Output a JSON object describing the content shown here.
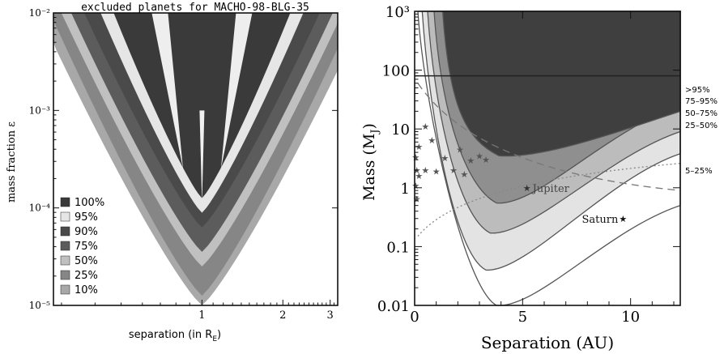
{
  "chart_data": [
    {
      "type": "area",
      "title": "excluded planets for MACHO-98-BLG-35",
      "xlabel": "separation (in R",
      "xlabel_sub": "E",
      "xlabel_close": ")",
      "ylabel": "mass fraction ε",
      "x_scale": "log",
      "y_scale": "log",
      "xlim": [
        0.28,
        3.2
      ],
      "ylim": [
        1e-05,
        0.01
      ],
      "x_ticks": [
        "1",
        "2",
        "3"
      ],
      "y_ticks": [
        "10⁻⁵",
        "10⁻⁴",
        "10⁻³",
        "10⁻²"
      ],
      "legend_position": "bottom-left",
      "legend": [
        {
          "label": "100%",
          "color": "#3a3a3a"
        },
        {
          "label": "95%",
          "color": "#e6e6e6"
        },
        {
          "label": "90%",
          "color": "#4a4a4a"
        },
        {
          "label": "75%",
          "color": "#5c5c5c"
        },
        {
          "label": "50%",
          "color": "#c0c0c0"
        },
        {
          "label": "25%",
          "color": "#868686"
        },
        {
          "label": "10%",
          "color": "#a8a8a8"
        }
      ],
      "detection_contours": [
        {
          "level": "10%",
          "min_log_eps": -5.0,
          "half_width_at_top": 1.0
        },
        {
          "level": "25%",
          "min_log_eps": -4.9,
          "half_width_at_top": 0.93
        },
        {
          "level": "50%",
          "min_log_eps": -4.6,
          "half_width_at_top": 0.86
        },
        {
          "level": "75%",
          "min_log_eps": -4.45,
          "half_width_at_top": 0.8
        },
        {
          "level": "90%",
          "min_log_eps": -4.2,
          "half_width_at_top": 0.72
        },
        {
          "level": "95%",
          "min_log_eps": -4.05,
          "half_width_at_top": 0.62
        },
        {
          "level": "100%",
          "min_log_eps": -3.9,
          "half_width_at_top": 0.54
        }
      ]
    },
    {
      "type": "line",
      "xlabel": "Separation (AU)",
      "ylabel": "Mass (M",
      "ylabel_sub": "J",
      "ylabel_close": ")",
      "x_scale": "linear",
      "y_scale": "log",
      "xlim": [
        0,
        12.3
      ],
      "ylim": [
        0.01,
        1000
      ],
      "x_ticks": [
        "0",
        "5",
        "10"
      ],
      "y_ticks": [
        "0.01",
        "0.1",
        "1",
        "10",
        "100",
        "10³"
      ],
      "grid": false,
      "contour_labels": [
        ">95%",
        "75–95%",
        "50–75%",
        "25–50%",
        "5–25%"
      ],
      "contours": [
        {
          "name": ">95%",
          "x_min": 3.9,
          "y_min": 3.5,
          "x_left_at_top": 1.3,
          "y_right_at_edge": 20
        },
        {
          "name": "75–95%",
          "x_min": 3.8,
          "y_min": 0.55,
          "x_left_at_top": 0.9,
          "y_right_at_edge": 25
        },
        {
          "name": "50–75%",
          "x_min": 3.5,
          "y_min": 0.17,
          "x_left_at_top": 0.6,
          "y_right_at_edge": 9
        },
        {
          "name": "25–50%",
          "x_min": 3.3,
          "y_min": 0.04,
          "x_left_at_top": 0.35,
          "y_right_at_edge": 3.8
        },
        {
          "name": "5–25%",
          "x_min": 3.8,
          "y_min": 0.01,
          "x_left_at_top": 0.15,
          "y_right_at_edge": 0.5
        }
      ],
      "reference_line": {
        "y": 80
      },
      "planets": [
        {
          "name": "Jupiter",
          "x": 5.2,
          "y": 1.0
        },
        {
          "name": "Saturn",
          "x": 9.5,
          "y": 0.3
        }
      ],
      "known_planet_stars": [
        {
          "x": 0.05,
          "y": 3.3
        },
        {
          "x": 0.1,
          "y": 2.0
        },
        {
          "x": 0.05,
          "y": 1.1
        },
        {
          "x": 0.1,
          "y": 0.65
        },
        {
          "x": 0.2,
          "y": 5.0
        },
        {
          "x": 0.5,
          "y": 11
        },
        {
          "x": 0.5,
          "y": 2.0
        },
        {
          "x": 0.8,
          "y": 6.5
        },
        {
          "x": 1.0,
          "y": 1.9
        },
        {
          "x": 1.4,
          "y": 3.2
        },
        {
          "x": 1.8,
          "y": 2.0
        },
        {
          "x": 2.1,
          "y": 4.5
        },
        {
          "x": 2.3,
          "y": 1.7
        },
        {
          "x": 2.6,
          "y": 2.9
        },
        {
          "x": 3.0,
          "y": 3.5
        },
        {
          "x": 3.3,
          "y": 3.0
        },
        {
          "x": 0.2,
          "y": 1.6
        }
      ]
    }
  ]
}
